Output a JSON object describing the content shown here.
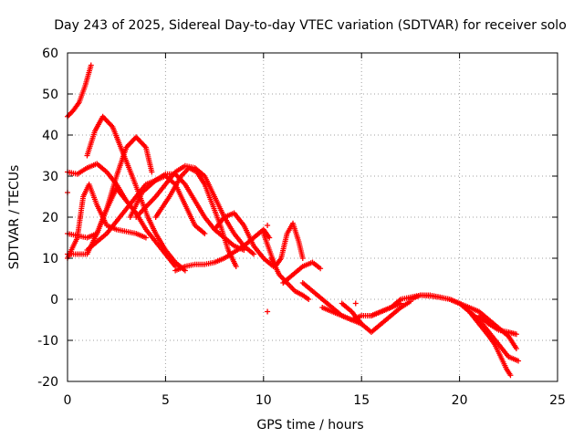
{
  "chart_data": {
    "type": "scatter",
    "title": "Day 243 of 2025, Sidereal Day-to-day VTEC variation (SDTVAR) for receiver solo",
    "xlabel": "GPS time / hours",
    "ylabel": "SDTVAR / TECUs",
    "xlim": [
      0,
      25
    ],
    "ylim": [
      -20,
      60
    ],
    "xticks": [
      0,
      5,
      10,
      15,
      20,
      25
    ],
    "yticks": [
      -20,
      -10,
      0,
      10,
      20,
      30,
      40,
      50,
      60
    ],
    "grid": true,
    "marker": "+",
    "color": "#ff0000",
    "series": [
      {
        "name": "s1",
        "x": [
          0,
          0.3,
          0.6,
          0.9,
          1.2
        ],
        "y": [
          44.5,
          46,
          48,
          52,
          57
        ]
      },
      {
        "name": "s2",
        "x": [
          1.0,
          1.4,
          1.8,
          2.3,
          2.8,
          3.3,
          3.7,
          4.1,
          4.5,
          5.0,
          5.5,
          6.0
        ],
        "y": [
          35,
          41,
          44.5,
          42,
          36,
          30,
          25,
          20,
          16,
          12,
          9,
          7
        ]
      },
      {
        "name": "s3",
        "x": [
          0,
          0.5,
          1.0,
          1.5,
          2.0,
          2.5,
          3.0,
          3.5,
          4.0,
          4.5,
          5.0,
          5.5
        ],
        "y": [
          31,
          30.5,
          32,
          33,
          31,
          28,
          24,
          21,
          17,
          14,
          11,
          8
        ]
      },
      {
        "name": "s4",
        "x": [
          0,
          0.5,
          0.8,
          1.1,
          1.5,
          2.0,
          2.5,
          3.0,
          3.5,
          4.0
        ],
        "y": [
          10,
          15,
          25,
          28,
          23,
          18,
          17,
          16.5,
          16,
          15
        ]
      },
      {
        "name": "s5",
        "x": [
          0,
          0.5,
          1.0,
          1.5,
          2.0,
          2.5,
          3.0,
          3.5,
          4.0,
          4.3
        ],
        "y": [
          11,
          11,
          11,
          16,
          22,
          30,
          37,
          39.5,
          37,
          31
        ]
      },
      {
        "name": "s6",
        "x": [
          0,
          0.5,
          1.0,
          1.5,
          2.0,
          2.5,
          3.0
        ],
        "y": [
          16,
          15.5,
          15,
          16,
          22,
          27,
          24
        ]
      },
      {
        "name": "s7",
        "x": [
          1.0,
          2.0,
          3.0,
          4.0,
          5.0,
          5.5,
          6.0,
          6.5,
          7.0
        ],
        "y": [
          12,
          16,
          22,
          28,
          30,
          28,
          23,
          18,
          16
        ]
      },
      {
        "name": "s8",
        "x": [
          3.2,
          3.8,
          4.5,
          5.0,
          5.5,
          6.0,
          6.5,
          7.0,
          7.5,
          8.0,
          8.5,
          9.0
        ],
        "y": [
          20,
          26,
          29,
          30.5,
          30.5,
          28,
          24,
          20,
          17,
          15,
          13,
          12
        ]
      },
      {
        "name": "s9",
        "x": [
          3.5,
          4.5,
          5.5,
          6.0,
          6.5,
          7.0,
          7.5,
          8.0,
          8.5,
          9.0,
          9.5
        ],
        "y": [
          20,
          25,
          31,
          32.5,
          32,
          30,
          25,
          20,
          16,
          13,
          11
        ]
      },
      {
        "name": "s10",
        "x": [
          4.5,
          5.2,
          5.8,
          6.2,
          6.6,
          7.0,
          7.4,
          7.8,
          8.2,
          8.6
        ],
        "y": [
          20,
          25,
          30,
          32,
          31,
          28,
          23,
          18,
          12,
          8
        ]
      },
      {
        "name": "s11",
        "x": [
          5.5,
          6.0,
          6.5,
          7.0,
          7.5,
          8.0,
          8.5,
          9.0,
          9.5,
          10.0,
          10.3
        ],
        "y": [
          7,
          8,
          8.5,
          8.5,
          9,
          10,
          11.5,
          13,
          15,
          17,
          15
        ]
      },
      {
        "name": "s12",
        "x": [
          7.5,
          8.0,
          8.5,
          9.0,
          9.5,
          10.0,
          10.5
        ],
        "y": [
          17,
          20,
          21,
          18,
          13,
          10,
          8
        ]
      },
      {
        "name": "s13",
        "x": [
          10.0,
          10.3,
          10.6,
          10.9,
          11.2,
          11.5,
          11.8,
          12.0
        ],
        "y": [
          16,
          12,
          8,
          10,
          16,
          18.5,
          14,
          10
        ]
      },
      {
        "name": "s14",
        "x": [
          10.4,
          10.8,
          11.2,
          11.6,
          12.0,
          12.3
        ],
        "y": [
          10,
          6,
          4,
          2,
          1,
          0
        ]
      },
      {
        "name": "s15",
        "x": [
          11.0,
          11.5,
          12.0,
          12.5,
          12.9
        ],
        "y": [
          4,
          6,
          8,
          9,
          7.5
        ]
      },
      {
        "name": "s16",
        "x": [
          12.0,
          12.5,
          13.0,
          13.5,
          14.0,
          14.5,
          15.0
        ],
        "y": [
          4,
          2,
          0,
          -2,
          -4,
          -5,
          -6
        ]
      },
      {
        "name": "s17",
        "x": [
          13.0,
          13.5,
          14.0,
          14.5,
          15.0,
          15.5,
          16.0,
          16.5,
          17.0
        ],
        "y": [
          -2,
          -3,
          -4,
          -5,
          -4,
          -4,
          -3,
          -2,
          -1
        ]
      },
      {
        "name": "s18",
        "x": [
          14.0,
          14.5,
          15.0,
          15.5,
          16.0,
          16.5,
          17.0,
          17.5
        ],
        "y": [
          -1,
          -3,
          -6,
          -8,
          -6,
          -4,
          -2,
          -0.5
        ]
      },
      {
        "name": "s19",
        "x": [
          15.5,
          16.0,
          16.5,
          17.0,
          17.5,
          18.0,
          18.5,
          19.0,
          19.5,
          20.0
        ],
        "y": [
          -4,
          -3,
          -2,
          0,
          0.5,
          1,
          0.8,
          0.5,
          0,
          -1
        ]
      },
      {
        "name": "s20",
        "x": [
          17.5,
          18.0,
          18.5,
          19.0,
          19.5,
          20.0,
          20.5,
          21.0,
          21.5,
          22.0,
          22.5,
          22.9
        ],
        "y": [
          0,
          1,
          1,
          0.5,
          0,
          -1,
          -2,
          -3,
          -5,
          -7,
          -9,
          -12
        ]
      },
      {
        "name": "s21",
        "x": [
          20.0,
          20.5,
          21.0,
          21.5,
          22.0,
          22.5,
          23.0
        ],
        "y": [
          -1,
          -3,
          -5,
          -8,
          -11,
          -14,
          -15
        ]
      },
      {
        "name": "s22",
        "x": [
          20.5,
          21.0,
          21.5,
          21.8,
          22.1,
          22.4,
          22.6
        ],
        "y": [
          -3,
          -6,
          -9,
          -11,
          -14,
          -17,
          -18.5
        ]
      },
      {
        "name": "s23",
        "x": [
          21.0,
          21.5,
          22.0,
          22.5,
          22.9
        ],
        "y": [
          -4,
          -6,
          -7.5,
          -8,
          -8.5
        ]
      }
    ],
    "outliers": [
      {
        "x": 0,
        "y": 26
      },
      {
        "x": 10.2,
        "y": 18
      },
      {
        "x": 10.2,
        "y": -3
      },
      {
        "x": 14.7,
        "y": -1
      }
    ]
  }
}
